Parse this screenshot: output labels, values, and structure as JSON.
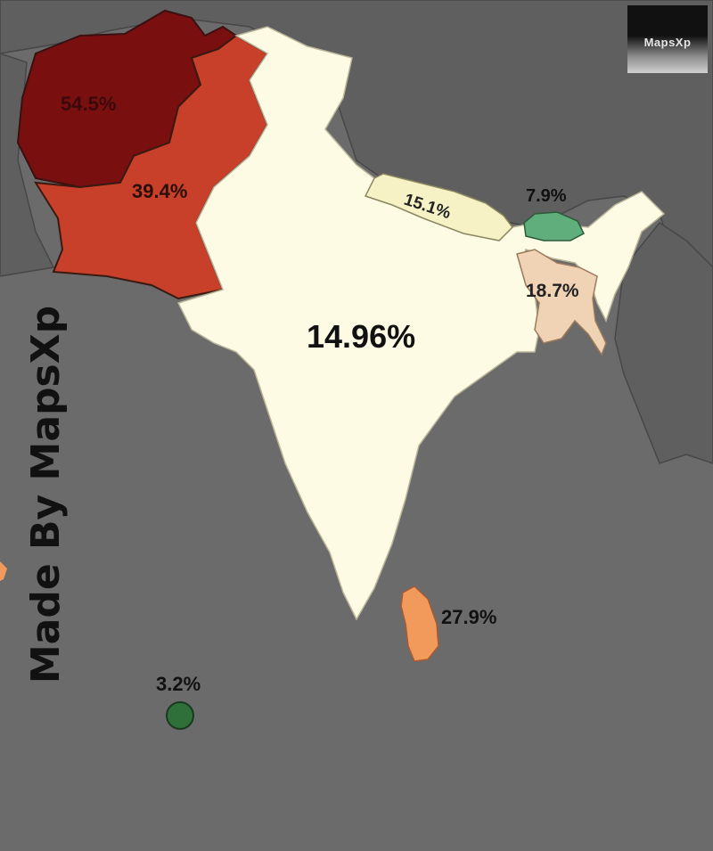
{
  "watermark": "MapsXp",
  "credit": "Made By MapsXp",
  "regions": [
    {
      "id": "afghanistan",
      "value": "54.5%",
      "color": "#7a0f10"
    },
    {
      "id": "pakistan",
      "value": "39.4%",
      "color": "#c9402a"
    },
    {
      "id": "india",
      "value": "14.96%",
      "color": "#fdfbe3"
    },
    {
      "id": "nepal",
      "value": "15.1%",
      "color": "#f7f2c6"
    },
    {
      "id": "bhutan",
      "value": "7.9%",
      "color": "#5fae7c"
    },
    {
      "id": "bangladesh",
      "value": "18.7%",
      "color": "#f0d3b5"
    },
    {
      "id": "sri-lanka",
      "value": "27.9%",
      "color": "#f29a5c"
    },
    {
      "id": "maldives",
      "value": "3.2%",
      "color": "#2f6f3a"
    }
  ],
  "colors": {
    "ocean": "#6b6b6b",
    "other_land": "#5b5b5b",
    "border": "#3a3a3a"
  }
}
